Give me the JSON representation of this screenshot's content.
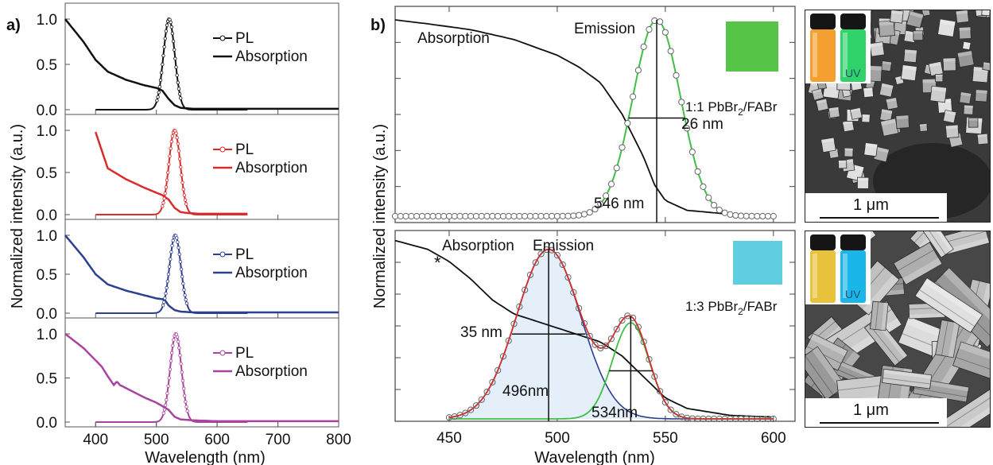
{
  "panel_labels": {
    "a": "a)",
    "b": "b)"
  },
  "shared": {
    "ylabel": "Normalized intensity (a.u.)",
    "xlabel": "Wavelength (nm)"
  },
  "colors": {
    "black": "#111111",
    "red": "#d92b2b",
    "blue": "#2d3f8f",
    "magenta": "#a8449e",
    "green_ink": "#3fbf45",
    "green_swatch": "#55c447",
    "cyan_swatch": "#5fcfe0",
    "fill_light_blue": "#e4eff9",
    "vial_orange": "#f3a030",
    "vial_green": "#30d36a",
    "vial_yellow": "#e8c23a",
    "vial_cyan": "#1ab6ea"
  },
  "chart_data": [
    {
      "type": "line",
      "panel": "a",
      "xlabel": "Wavelength (nm)",
      "xlim": [
        350,
        800
      ],
      "xticks": [
        400,
        500,
        600,
        700,
        800
      ],
      "ylim": [
        -0.05,
        1.12
      ],
      "yticks": [
        0.0,
        0.5,
        1.0
      ],
      "legend": "top-right",
      "subplots": [
        {
          "color": "black",
          "series": [
            {
              "name": "PL",
              "marker": "circle",
              "peak": 521,
              "fwhm": 22,
              "x_range": [
                400,
                650
              ]
            },
            {
              "name": "Absorption",
              "x": [
                350,
                380,
                400,
                420,
                450,
                480,
                500,
                510,
                520,
                530,
                540,
                560,
                600,
                700,
                800
              ],
              "y": [
                1.0,
                0.75,
                0.55,
                0.42,
                0.33,
                0.27,
                0.24,
                0.21,
                0.12,
                0.05,
                0.02,
                0.01,
                0.01,
                0.01,
                0.01
              ]
            }
          ]
        },
        {
          "color": "red",
          "series": [
            {
              "name": "PL",
              "marker": "circle",
              "peak": 530,
              "fwhm": 22,
              "x_range": [
                400,
                650
              ]
            },
            {
              "name": "Absorption",
              "x": [
                400,
                420,
                450,
                480,
                500,
                510,
                520,
                530,
                540,
                550,
                570,
                650
              ],
              "y": [
                0.98,
                0.55,
                0.42,
                0.32,
                0.26,
                0.23,
                0.18,
                0.08,
                0.03,
                0.02,
                0.01,
                0.01
              ]
            }
          ]
        },
        {
          "color": "blue",
          "series": [
            {
              "name": "PL",
              "marker": "circle",
              "peak": 531,
              "fwhm": 22,
              "x_range": [
                400,
                650
              ]
            },
            {
              "name": "Absorption",
              "x": [
                350,
                380,
                400,
                420,
                450,
                480,
                500,
                510,
                515,
                520,
                530,
                540,
                560,
                600,
                800
              ],
              "y": [
                1.0,
                0.72,
                0.5,
                0.37,
                0.29,
                0.23,
                0.19,
                0.18,
                0.16,
                0.1,
                0.04,
                0.02,
                0.01,
                0.01,
                0.01
              ]
            }
          ]
        },
        {
          "color": "magenta",
          "series": [
            {
              "name": "PL",
              "marker": "circle",
              "peak": 532,
              "fwhm": 22,
              "x_range": [
                400,
                650
              ]
            },
            {
              "name": "Absorption",
              "x": [
                350,
                380,
                410,
                420,
                430,
                435,
                440,
                460,
                480,
                500,
                520,
                530,
                540,
                560,
                600,
                800
              ],
              "y": [
                1.0,
                0.84,
                0.63,
                0.52,
                0.42,
                0.46,
                0.42,
                0.35,
                0.28,
                0.22,
                0.14,
                0.06,
                0.03,
                0.02,
                0.01,
                0.01
              ]
            }
          ]
        }
      ]
    },
    {
      "type": "line",
      "panel": "b-top",
      "xlim": [
        425,
        610
      ],
      "ylim": [
        -0.02,
        1.05
      ],
      "series": [
        {
          "name": "Absorption",
          "x": [
            425,
            440,
            460,
            480,
            500,
            510,
            520,
            530,
            540,
            545,
            550,
            560,
            580,
            600
          ],
          "y": [
            1.0,
            0.98,
            0.95,
            0.9,
            0.82,
            0.76,
            0.68,
            0.52,
            0.3,
            0.16,
            0.08,
            0.03,
            0.01,
            0.0
          ]
        },
        {
          "name": "Emission",
          "marker": "circle",
          "peak": 546,
          "fwhm": 26,
          "x_range": [
            425,
            600
          ]
        }
      ],
      "annotations": {
        "absorption": "Absorption",
        "emission": "Emission",
        "fwhm": "26 nm",
        "peak": "546 nm",
        "sample": "1:1 PbBr",
        "sample_sub": "2",
        "sample_tail": "/FABr",
        "vial_label": "UV"
      }
    },
    {
      "type": "line",
      "panel": "b-bottom",
      "xlabel": "Wavelength (nm)",
      "xlim": [
        425,
        610
      ],
      "xticks": [
        450,
        500,
        550,
        600
      ],
      "ylim": [
        -0.02,
        1.05
      ],
      "series": [
        {
          "name": "Absorption",
          "x": [
            425,
            440,
            450,
            460,
            470,
            480,
            490,
            500,
            510,
            520,
            530,
            540,
            550,
            560,
            580,
            600
          ],
          "y": [
            1.02,
            0.97,
            0.9,
            0.8,
            0.68,
            0.6,
            0.56,
            0.52,
            0.48,
            0.44,
            0.36,
            0.24,
            0.12,
            0.06,
            0.02,
            0.01
          ]
        },
        {
          "name": "Emission",
          "marker": "circle",
          "components": [
            {
              "peak": 496,
              "fwhm": 35,
              "amp": 0.97
            },
            {
              "peak": 534,
              "fwhm": 20,
              "amp": 0.55
            }
          ],
          "x_range": [
            450,
            600
          ]
        }
      ],
      "annotations": {
        "absorption": "Absorption",
        "emission": "Emission",
        "fwhm": "35 nm",
        "peak1": "496nm",
        "peak2": "534nm",
        "asterisk": "*",
        "sample": "1:3 PbBr",
        "sample_sub": "2",
        "sample_tail": "/FABr",
        "vial_label": "UV"
      }
    }
  ],
  "sem": [
    {
      "scale_label": "1 μm"
    },
    {
      "scale_label": "1 μm"
    }
  ]
}
